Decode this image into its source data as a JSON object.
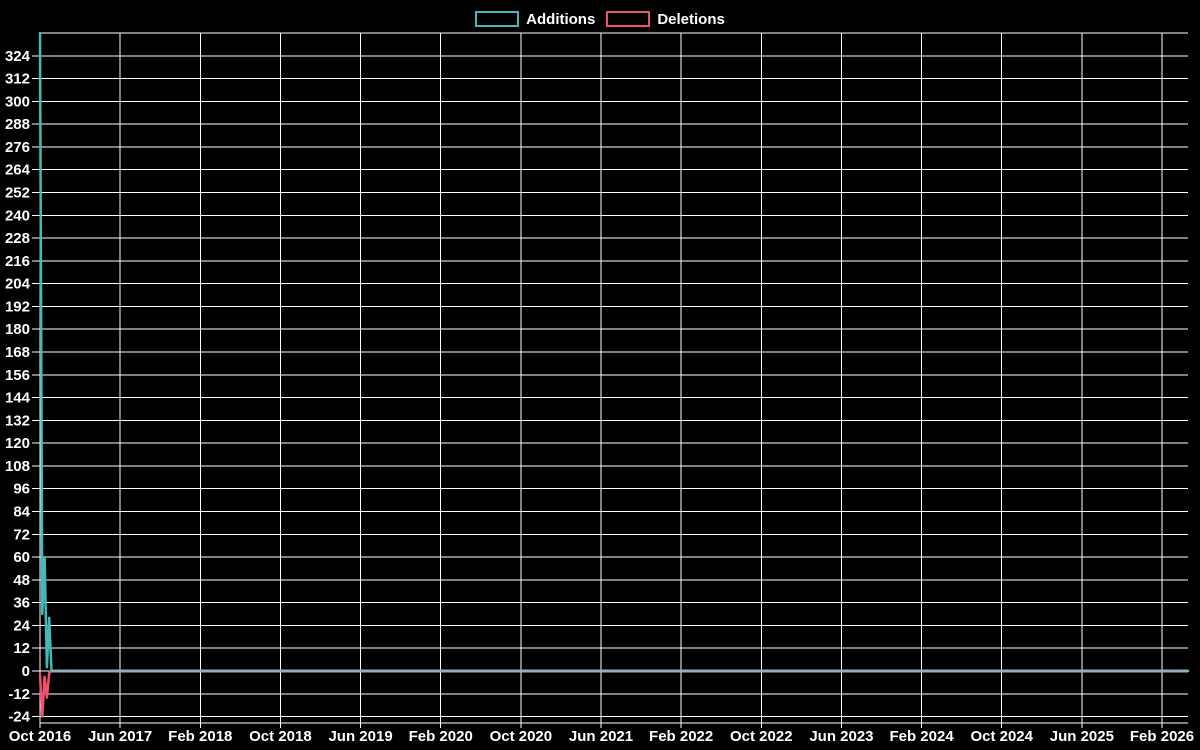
{
  "colors": {
    "background": "#000000",
    "grid": "#ffffff",
    "text": "#ffffff",
    "additions": "#45b8bc",
    "deletions": "#ee5170",
    "zero_overlap_line": "#8fb0ba"
  },
  "legend": {
    "items": [
      {
        "label": "Additions",
        "color": "#45b8bc"
      },
      {
        "label": "Deletions",
        "color": "#ee5170"
      }
    ]
  },
  "chart_data": {
    "type": "line",
    "title": "",
    "xlabel": "",
    "ylabel": "",
    "grid": true,
    "legend_position": "top-center",
    "x_tick_labels": [
      "Oct 2016",
      "Jun 2017",
      "Feb 2018",
      "Oct 2018",
      "Jun 2019",
      "Feb 2020",
      "Oct 2020",
      "Jun 2021",
      "Feb 2022",
      "Oct 2022",
      "Jun 2023",
      "Feb 2024",
      "Oct 2024",
      "Jun 2025",
      "Feb 2026"
    ],
    "y_ticks": [
      324,
      312,
      300,
      288,
      276,
      264,
      252,
      240,
      228,
      216,
      204,
      192,
      180,
      168,
      156,
      144,
      132,
      120,
      108,
      96,
      84,
      72,
      60,
      48,
      36,
      24,
      12,
      0,
      -12,
      -24
    ],
    "y_tick_step": 12,
    "ylim": [
      -27,
      336
    ],
    "x_start_week": "Oct 2016",
    "x_end": "Feb 2026",
    "series": [
      {
        "name": "Additions",
        "color": "#45b8bc",
        "weekly_values": [
          336,
          30,
          60,
          2,
          28
        ],
        "tail_value": 0,
        "tail_note": "flat at 0 from Nov 2016 through Feb 2026"
      },
      {
        "name": "Deletions",
        "color": "#ee5170",
        "weekly_values": [
          -2,
          -24,
          -3,
          -14,
          -1
        ],
        "tail_value": 0,
        "tail_note": "flat at 0 from Nov 2016 through Feb 2026"
      }
    ]
  }
}
